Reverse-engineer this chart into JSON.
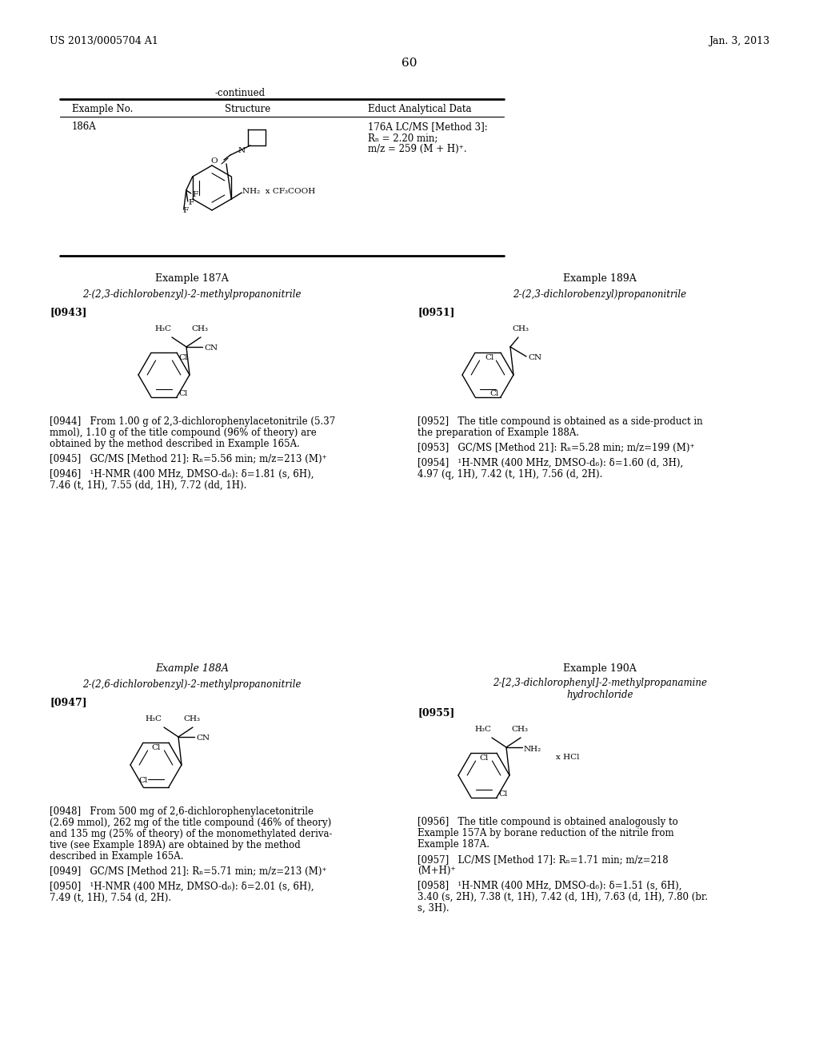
{
  "page_header_left": "US 2013/0005704 A1",
  "page_header_right": "Jan. 3, 2013",
  "page_number": "60",
  "bg_color": "#ffffff",
  "table_continued": "-continued",
  "table_headers": [
    "Example No.",
    "Structure",
    "Educt Analytical Data"
  ],
  "table_example_no": "186A",
  "table_data_line1": "176A LC/MS [Method 3]:",
  "table_data_line2": "Rₙ = 2.20 min;",
  "table_data_line3": "m/z = 259 (M + H)⁺.",
  "s1_title": "Example 187A",
  "s1_compound": "2-(2,3-dichlorobenzyl)-2-methylpropanonitrile",
  "s1_tag": "[0943]",
  "s1_p1l1": "[0944]   From 1.00 g of 2,3-dichlorophenylacetonitrile (5.37",
  "s1_p1l2": "mmol), 1.10 g of the title compound (96% of theory) are",
  "s1_p1l3": "obtained by the method described in Example 165A.",
  "s1_p2": "[0945]   GC/MS [Method 21]: Rₙ=5.56 min; m/z=213 (M)⁺",
  "s1_p3l1": "[0946]   ¹H-NMR (400 MHz, DMSO-d₆): δ=1.81 (s, 6H),",
  "s1_p3l2": "7.46 (t, 1H), 7.55 (dd, 1H), 7.72 (dd, 1H).",
  "s2_title": "Example 188A",
  "s2_compound": "2-(2,6-dichlorobenzyl)-2-methylpropanonitrile",
  "s2_tag": "[0947]",
  "s2_p1l1": "[0948]   From 500 mg of 2,6-dichlorophenylacetonitrile",
  "s2_p1l2": "(2.69 mmol), 262 mg of the title compound (46% of theory)",
  "s2_p1l3": "and 135 mg (25% of theory) of the monomethylated deriva-",
  "s2_p1l4": "tive (see Example 189A) are obtained by the method",
  "s2_p1l5": "described in Example 165A.",
  "s2_p2": "[0949]   GC/MS [Method 21]: Rₙ=5.71 min; m/z=213 (M)⁺",
  "s2_p3l1": "[0950]   ¹H-NMR (400 MHz, DMSO-d₆): δ=2.01 (s, 6H),",
  "s2_p3l2": "7.49 (t, 1H), 7.54 (d, 2H).",
  "s3_title": "Example 189A",
  "s3_compound": "2-(2,3-dichlorobenzyl)propanonitrile",
  "s3_tag": "[0951]",
  "s3_p1l1": "[0952]   The title compound is obtained as a side-product in",
  "s3_p1l2": "the preparation of Example 188A.",
  "s3_p2": "[0953]   GC/MS [Method 21]: Rₙ=5.28 min; m/z=199 (M)⁺",
  "s3_p3l1": "[0954]   ¹H-NMR (400 MHz, DMSO-d₆): δ=1.60 (d, 3H),",
  "s3_p3l2": "4.97 (q, 1H), 7.42 (t, 1H), 7.56 (d, 2H).",
  "s4_title": "Example 190A",
  "s4_compound1": "2-[2,3-dichlorophenyl]-2-methylpropanamine",
  "s4_compound2": "hydrochloride",
  "s4_tag": "[0955]",
  "s4_p1l1": "[0956]   The title compound is obtained analogously to",
  "s4_p1l2": "Example 157A by borane reduction of the nitrile from",
  "s4_p1l3": "Example 187A.",
  "s4_p2l1": "[0957]   LC/MS [Method 17]: Rₙ=1.71 min; m/z=218",
  "s4_p2l2": "(M+H)⁺",
  "s4_p3l1": "[0958]   ¹H-NMR (400 MHz, DMSO-d₆): δ=1.51 (s, 6H),",
  "s4_p3l2": "3.40 (s, 2H), 7.38 (t, 1H), 7.42 (d, 1H), 7.63 (d, 1H), 7.80 (br.",
  "s4_p3l3": "s, 3H)."
}
